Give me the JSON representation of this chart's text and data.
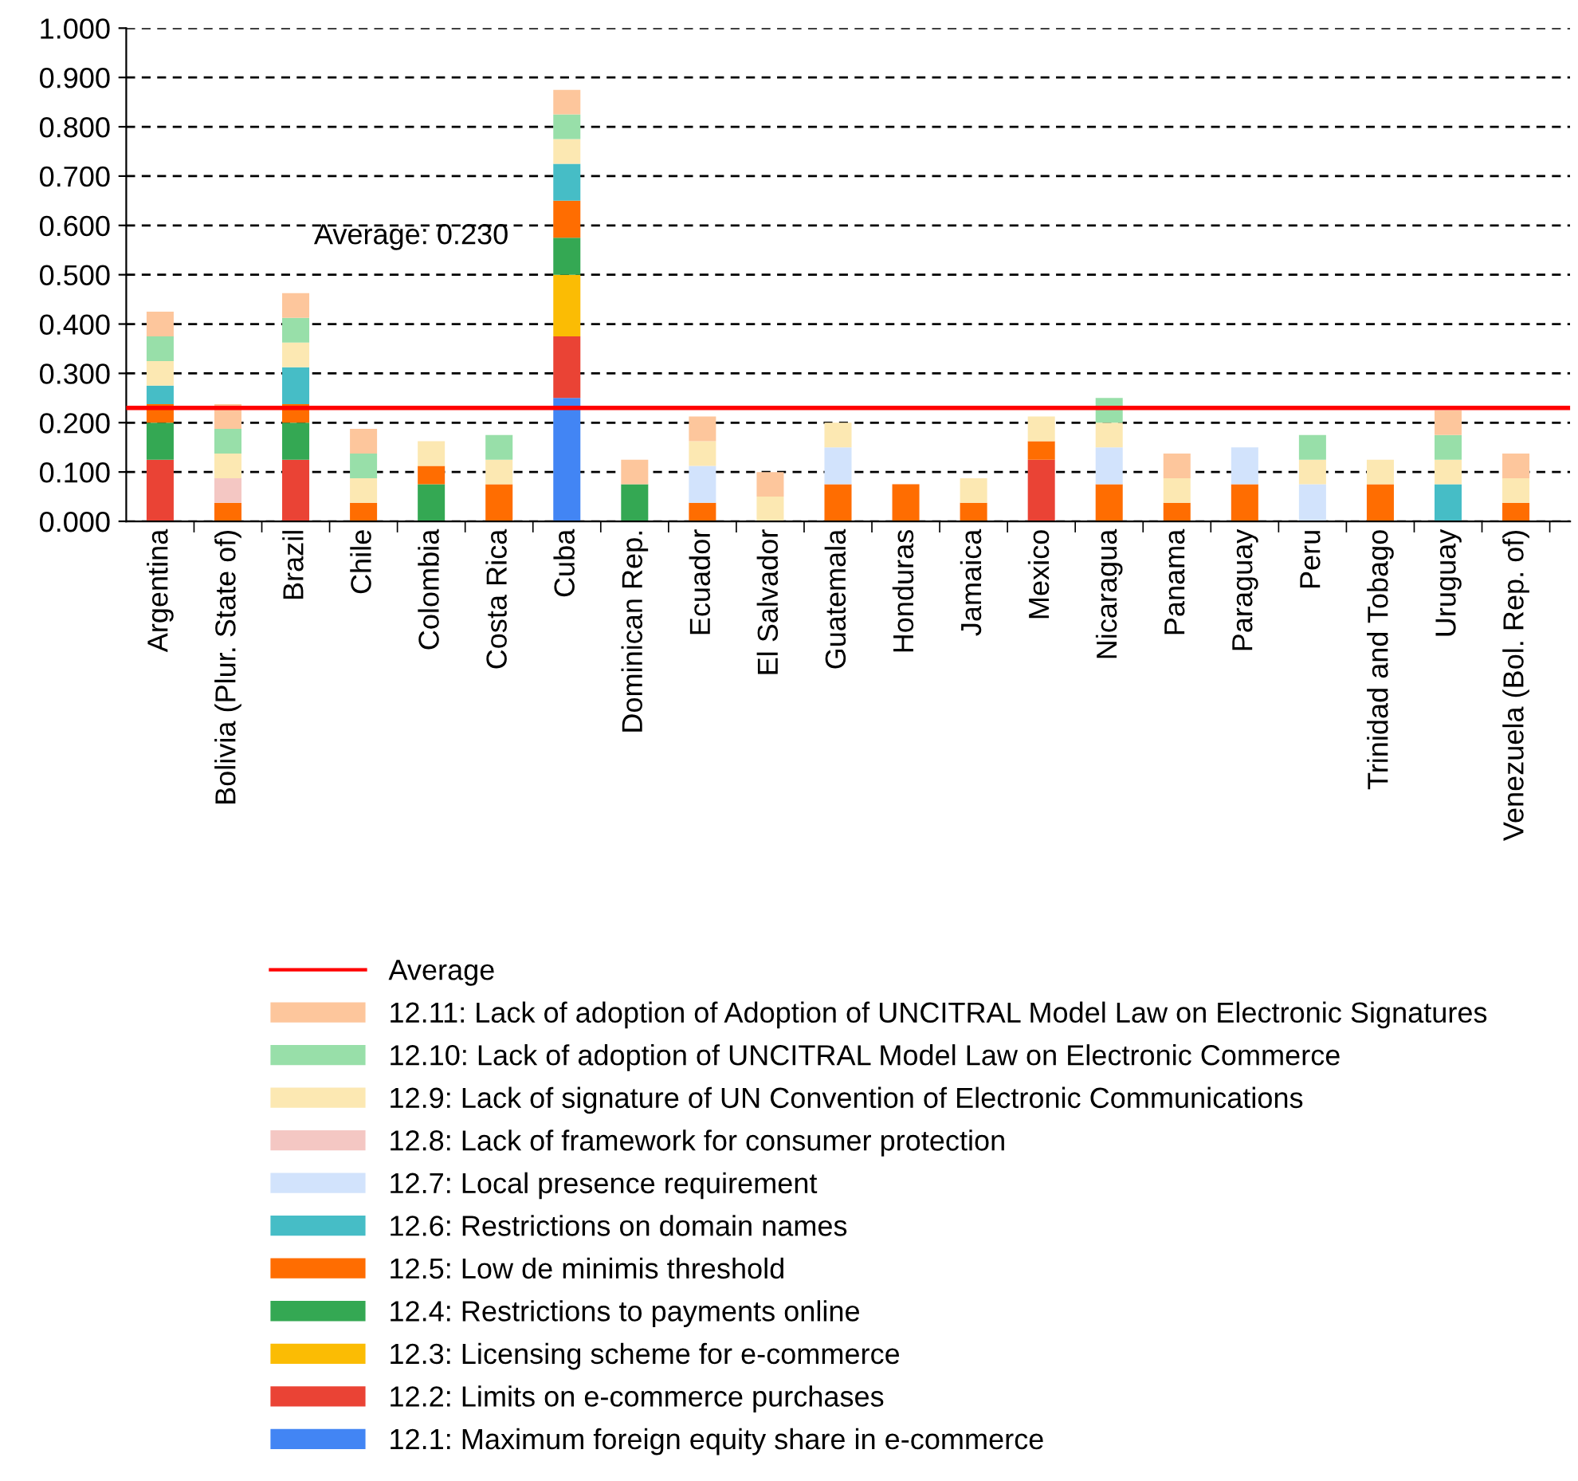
{
  "chart_data": {
    "type": "bar",
    "stacked": true,
    "categories": [
      "Argentina",
      "Bolivia (Plur. State of)",
      "Brazil",
      "Chile",
      "Colombia",
      "Costa Rica",
      "Cuba",
      "Dominican Rep.",
      "Ecuador",
      "El Salvador",
      "Guatemala",
      "Honduras",
      "Jamaica",
      "Mexico",
      "Nicaragua",
      "Panama",
      "Paraguay",
      "Peru",
      "Trinidad and Tobago",
      "Uruguay",
      "Venezuela (Bol. Rep. of)"
    ],
    "series": [
      {
        "name": "12.1: Maximum foreign equity share in e-commerce",
        "color": "#4285f4",
        "values": [
          null,
          null,
          null,
          null,
          null,
          null,
          0.25,
          null,
          null,
          null,
          null,
          null,
          null,
          null,
          null,
          null,
          null,
          null,
          null,
          null,
          null
        ]
      },
      {
        "name": "12.2: Limits on e-commerce purchases",
        "color": "#ea4335",
        "values": [
          0.125,
          null,
          0.125,
          null,
          null,
          null,
          0.125,
          null,
          null,
          null,
          null,
          null,
          null,
          0.125,
          null,
          null,
          null,
          null,
          null,
          null,
          null
        ]
      },
      {
        "name": "12.3: Licensing scheme for e-commerce",
        "color": "#fbbc04",
        "values": [
          null,
          null,
          null,
          null,
          null,
          null,
          0.125,
          null,
          null,
          null,
          null,
          null,
          null,
          null,
          null,
          null,
          null,
          null,
          null,
          null,
          null
        ]
      },
      {
        "name": "12.4: Restrictions to payments online",
        "color": "#34a853",
        "values": [
          0.075,
          null,
          0.075,
          null,
          0.075,
          null,
          0.075,
          0.075,
          null,
          null,
          null,
          null,
          null,
          null,
          null,
          null,
          null,
          null,
          null,
          null,
          null
        ]
      },
      {
        "name": "12.5: Low de minimis threshold",
        "color": "#ff6d01",
        "values": [
          0.0375,
          0.0375,
          0.0375,
          0.0375,
          0.0375,
          0.075,
          0.075,
          null,
          0.0375,
          null,
          0.075,
          0.075,
          0.0375,
          0.0375,
          0.075,
          0.0375,
          0.075,
          null,
          0.075,
          null,
          0.0375
        ]
      },
      {
        "name": "12.6: Restrictions on domain names",
        "color": "#46bdc6",
        "values": [
          0.0375,
          null,
          0.075,
          null,
          null,
          null,
          0.075,
          null,
          null,
          null,
          null,
          null,
          null,
          null,
          null,
          null,
          null,
          null,
          null,
          0.075,
          null
        ]
      },
      {
        "name": "12.7: Local presence requirement",
        "color": "#d2e3fc",
        "values": [
          null,
          null,
          null,
          null,
          null,
          null,
          null,
          null,
          0.075,
          null,
          0.075,
          null,
          null,
          null,
          0.075,
          null,
          0.075,
          0.075,
          null,
          null,
          null
        ]
      },
      {
        "name": "12.8: Lack of framework for consumer protection",
        "color": "#f4c7c3",
        "values": [
          null,
          0.05,
          null,
          null,
          null,
          null,
          null,
          null,
          null,
          null,
          null,
          null,
          null,
          null,
          null,
          null,
          null,
          null,
          null,
          null,
          null
        ]
      },
      {
        "name": "12.9: Lack of signature of UN Convention of Electronic Communications",
        "color": "#fce8b2",
        "values": [
          0.05,
          0.05,
          0.05,
          0.05,
          0.05,
          0.05,
          0.05,
          null,
          0.05,
          0.05,
          0.05,
          null,
          0.05,
          0.05,
          0.05,
          0.05,
          null,
          0.05,
          0.05,
          0.05,
          0.05
        ]
      },
      {
        "name": "12.10: Lack of adoption of UNCITRAL Model Law on Electronic Commerce",
        "color": "#98dfa9",
        "values": [
          0.05,
          0.05,
          0.05,
          0.05,
          null,
          0.05,
          0.05,
          null,
          null,
          null,
          null,
          null,
          null,
          null,
          0.05,
          null,
          null,
          0.05,
          null,
          0.05,
          null
        ]
      },
      {
        "name": "12.11: Lack of adoption of Adoption of UNCITRAL Model Law on Electronic Signatures",
        "color": "#fdc69c",
        "values": [
          0.05,
          0.05,
          0.05,
          0.05,
          null,
          null,
          0.05,
          0.05,
          0.05,
          0.05,
          null,
          null,
          null,
          null,
          null,
          0.05,
          null,
          null,
          null,
          0.05,
          0.05
        ]
      }
    ],
    "ref_lines": [
      {
        "axis": "y",
        "value": 0.23,
        "label": "Average",
        "color": "#ff0000",
        "line_style": "solid"
      }
    ],
    "annotations": [
      "Average: 0.230"
    ],
    "ylim": [
      0,
      1
    ],
    "yticks": [
      {
        "value": 0,
        "label": "0.000"
      },
      {
        "value": 0.1,
        "label": "0.100"
      },
      {
        "value": 0.2,
        "label": "0.200"
      },
      {
        "value": 0.3,
        "label": "0.300"
      },
      {
        "value": 0.4,
        "label": "0.400"
      },
      {
        "value": 0.5,
        "label": "0.500"
      },
      {
        "value": 0.6,
        "label": "0.600"
      },
      {
        "value": 0.7,
        "label": "0.700"
      },
      {
        "value": 0.8,
        "label": "0.800"
      },
      {
        "value": 0.9,
        "label": "0.900"
      },
      {
        "value": 1,
        "label": "1.000"
      }
    ],
    "grid": "y",
    "legend": "bottom"
  }
}
